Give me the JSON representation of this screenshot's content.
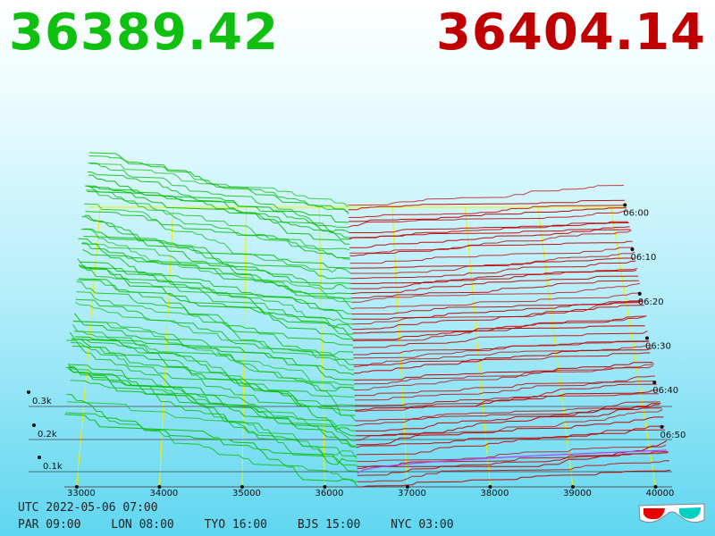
{
  "prices": {
    "bid": "36389.42",
    "ask": "36404.14"
  },
  "colors": {
    "bid": "#10c010",
    "ask": "#c00000",
    "grid": "#f0f000",
    "best": "#b040ff",
    "bid_price": "#10c010",
    "ask_price": "#c00000"
  },
  "footer": {
    "utc": "UTC 2022-05-06 07:00",
    "zones": [
      "PAR 09:00",
      "LON 08:00",
      "TYO 16:00",
      "BJS 15:00",
      "NYC 03:00"
    ]
  },
  "icons": {
    "glasses": "3d-glasses-icon"
  },
  "chart_data": {
    "type": "area",
    "description_axes": "3D order book depth chart",
    "x_ticks": [
      "33000",
      "34000",
      "35000",
      "36000",
      "37000",
      "38000",
      "39000",
      "40000"
    ],
    "x_values": [
      33000,
      34000,
      35000,
      36000,
      37000,
      38000,
      39000,
      40000
    ],
    "z_ticks": [
      "0.1k",
      "0.2k",
      "0.3k"
    ],
    "z_values": [
      100,
      200,
      300
    ],
    "time_ticks": [
      "06:00",
      "06:10",
      "06:20",
      "06:30",
      "06:40",
      "06:50"
    ],
    "xlim": [
      32850,
      40200
    ],
    "zlim": [
      0,
      700
    ],
    "mid_price": 36396.78,
    "bid_depth_edge": 505,
    "ask_depth_edge": 195,
    "snapshots": 56
  }
}
